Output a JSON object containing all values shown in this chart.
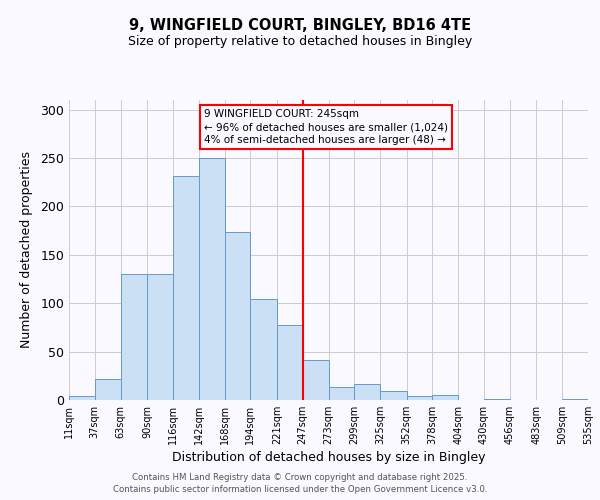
{
  "title": "9, WINGFIELD COURT, BINGLEY, BD16 4TE",
  "subtitle": "Size of property relative to detached houses in Bingley",
  "xlabel": "Distribution of detached houses by size in Bingley",
  "ylabel": "Number of detached properties",
  "bar_color": "#cce0f5",
  "bar_edge_color": "#6699cc",
  "grid_color": "#cccccc",
  "vline_x": 247,
  "vline_color": "red",
  "annotation_title": "9 WINGFIELD COURT: 245sqm",
  "annotation_line1": "← 96% of detached houses are smaller (1,024)",
  "annotation_line2": "4% of semi-detached houses are larger (48) →",
  "annotation_box_color": "red",
  "bins": [
    11,
    37,
    63,
    90,
    116,
    142,
    168,
    194,
    221,
    247,
    273,
    299,
    325,
    352,
    378,
    404,
    430,
    456,
    483,
    509,
    535
  ],
  "counts": [
    4,
    22,
    130,
    130,
    231,
    250,
    174,
    104,
    78,
    41,
    13,
    17,
    9,
    4,
    5,
    0,
    1,
    0,
    0,
    1
  ],
  "ylim": [
    0,
    310
  ],
  "yticks": [
    0,
    50,
    100,
    150,
    200,
    250,
    300
  ],
  "footer_line1": "Contains HM Land Registry data © Crown copyright and database right 2025.",
  "footer_line2": "Contains public sector information licensed under the Open Government Licence v3.0.",
  "background_color": "#f9f9ff"
}
